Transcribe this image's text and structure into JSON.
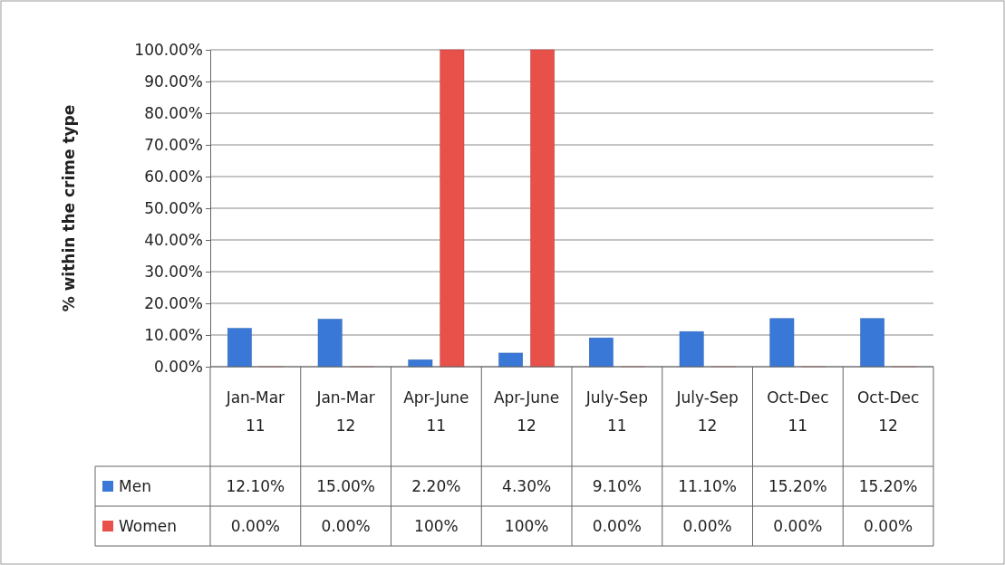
{
  "chart_data": {
    "type": "bar",
    "ylabel": "% within the crime type",
    "categories": [
      "Jan-Mar 11",
      "Jan-Mar 12",
      "Apr-June 11",
      "Apr-June 12",
      "July-Sep 11",
      "July-Sep 12",
      "Oct-Dec 11",
      "Oct-Dec 12"
    ],
    "series": [
      {
        "name": "Men",
        "color": "#3a78d8",
        "values": [
          12.1,
          15.0,
          2.2,
          4.3,
          9.1,
          11.1,
          15.2,
          15.2
        ],
        "value_labels": [
          "12.10%",
          "15.00%",
          "2.20%",
          "4.30%",
          "9.10%",
          "11.10%",
          "15.20%",
          "15.20%"
        ]
      },
      {
        "name": "Women",
        "color": "#e8504a",
        "values": [
          0,
          0,
          100,
          100,
          0,
          0,
          0,
          0
        ],
        "value_labels": [
          "0.00%",
          "0.00%",
          "100%",
          "100%",
          "0.00%",
          "0.00%",
          "0.00%",
          "0.00%"
        ]
      }
    ],
    "ylim": [
      0,
      100
    ],
    "yticks": [
      {
        "value": 0,
        "label": "0.00%"
      },
      {
        "value": 10,
        "label": "10.00%"
      },
      {
        "value": 20,
        "label": "20.00%"
      },
      {
        "value": 30,
        "label": "30.00%"
      },
      {
        "value": 40,
        "label": "40.00%"
      },
      {
        "value": 50,
        "label": "50.00%"
      },
      {
        "value": 60,
        "label": "60.00%"
      },
      {
        "value": 70,
        "label": "70.00%"
      },
      {
        "value": 80,
        "label": "80.00%"
      },
      {
        "value": 90,
        "label": "90.00%"
      },
      {
        "value": 100,
        "label": "100.00%"
      }
    ],
    "grid": "y",
    "legend": "bottom"
  }
}
